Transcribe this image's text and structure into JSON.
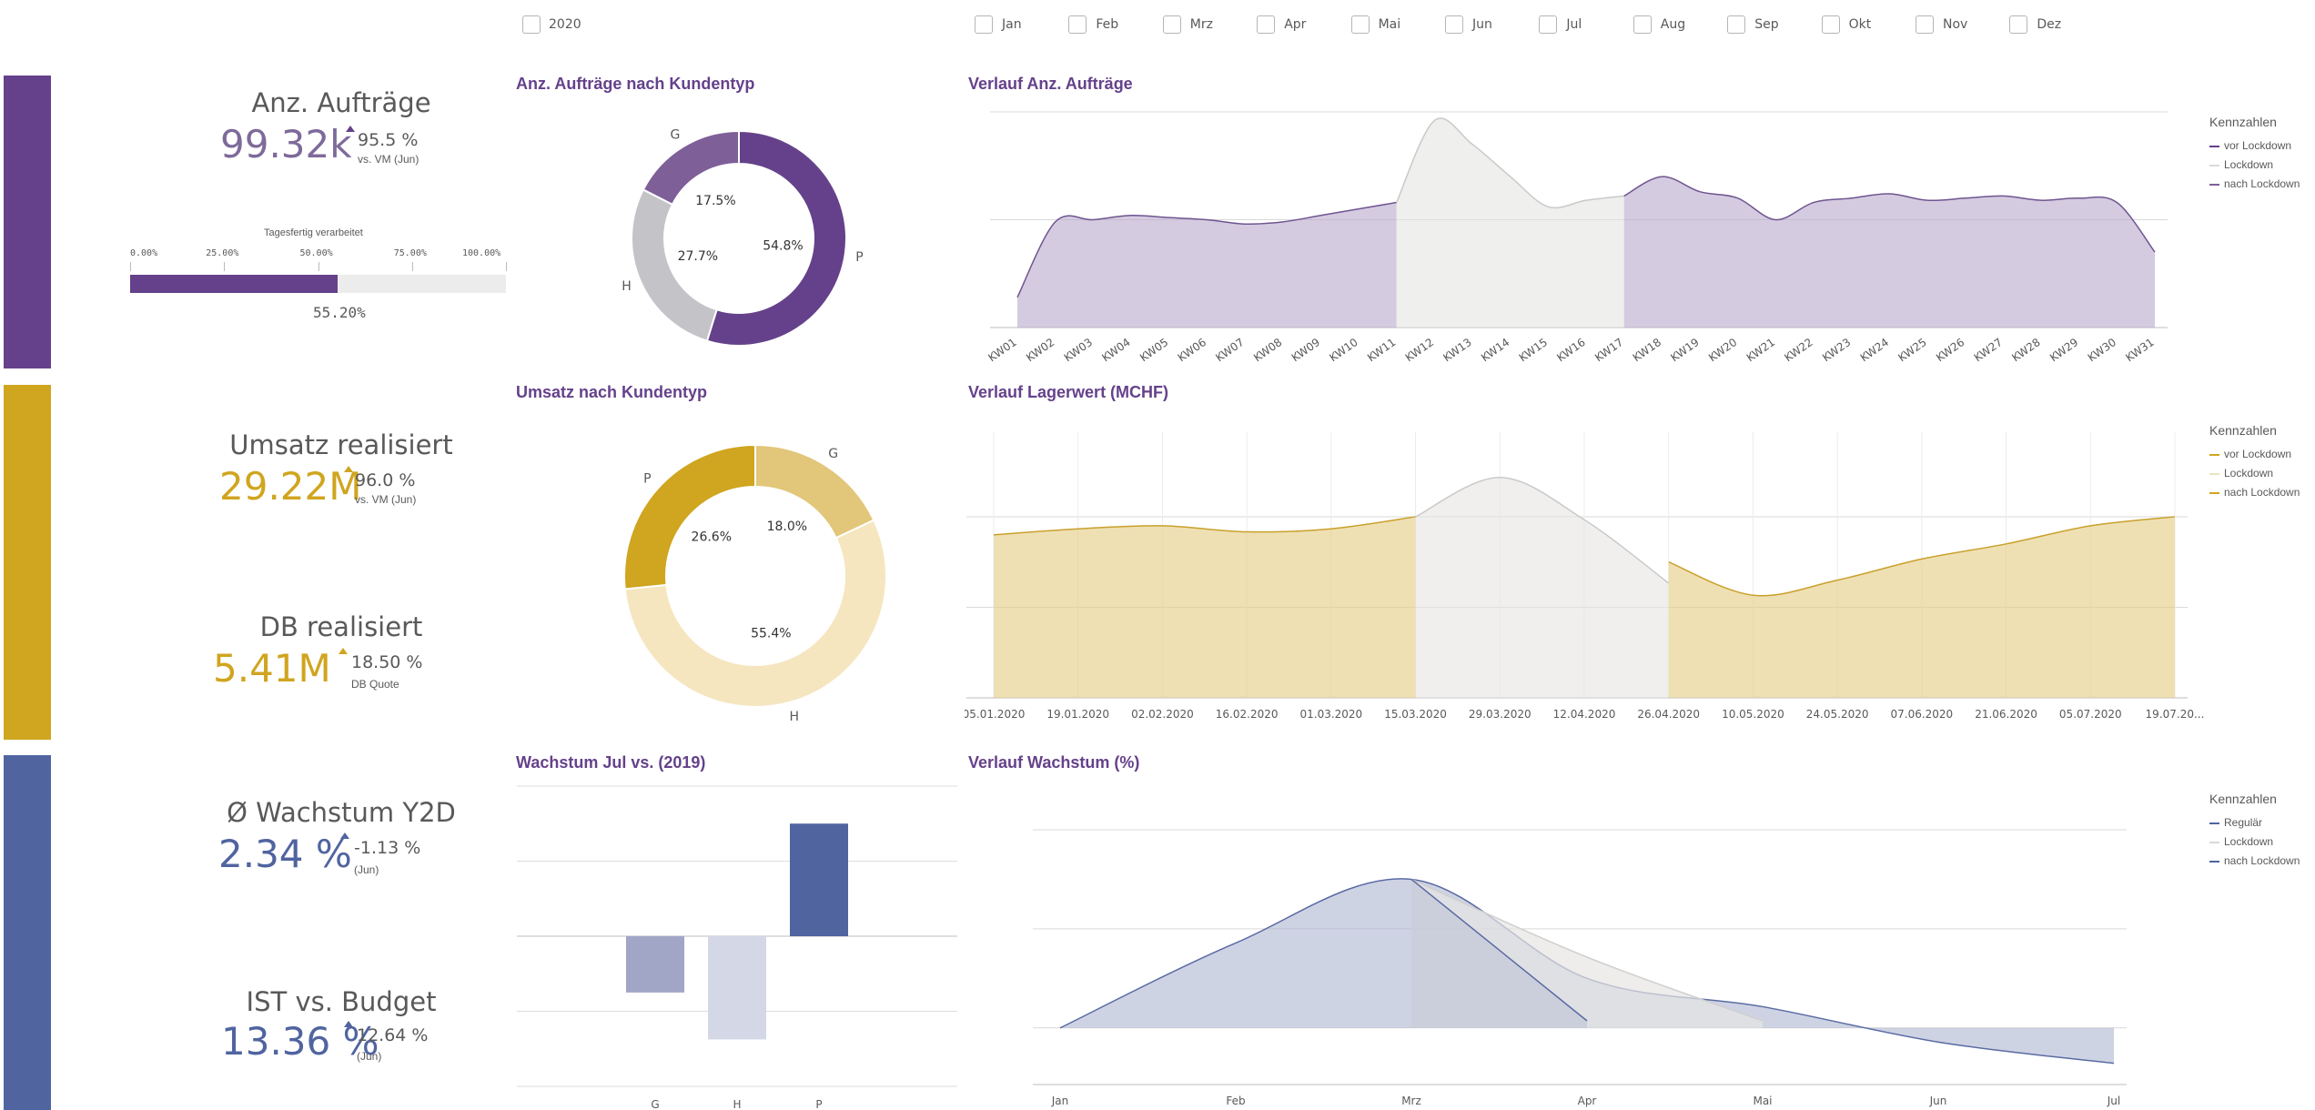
{
  "filters": {
    "year": "2020",
    "months": [
      "Jan",
      "Feb",
      "Mrz",
      "Apr",
      "Mai",
      "Jun",
      "Jul",
      "Aug",
      "Sep",
      "Okt",
      "Nov",
      "Dez"
    ]
  },
  "colors": {
    "purple": "#65418b",
    "gold": "#d0a51f",
    "blue": "#5064a0",
    "grey": "#c9c9cb"
  },
  "kpis": {
    "auftraege": {
      "title": "Anz. Aufträge",
      "value": "99.32k",
      "pct": "95.5 %",
      "sub": "vs. VM (Jun)"
    },
    "gauge": {
      "title": "Tagesfertig verarbeitet",
      "ticks": [
        "0.00%",
        "25.00%",
        "50.00%",
        "75.00%",
        "100.00%"
      ],
      "value_label": "55.20%",
      "value": 0.552
    },
    "umsatz": {
      "title": "Umsatz realisiert",
      "value": "29.22M",
      "pct": "96.0 %",
      "sub": "vs. VM (Jun)"
    },
    "db": {
      "title": "DB realisiert",
      "value": "5.41M",
      "pct": "18.50 %",
      "sub": "DB Quote"
    },
    "wachstum": {
      "title": "Ø Wachstum Y2D",
      "value": "2.34 %",
      "pct": "-1.13 %",
      "sub": "(Jun)"
    },
    "budget": {
      "title": "IST vs. Budget",
      "value": "13.36 %",
      "pct": "12.64 %",
      "sub": "(Jun)"
    }
  },
  "panels": {
    "donut1_title": "Anz. Aufträge nach Kundentyp",
    "line1_title": "Verlauf Anz. Aufträge",
    "donut2_title": "Umsatz nach Kundentyp",
    "line2_title": "Verlauf Lagerwert (MCHF)",
    "bar_title": "Wachstum Jul vs. (2019)",
    "line3_title": "Verlauf Wachstum (%)"
  },
  "legends": {
    "l1": {
      "title": "Kennzahlen",
      "items": [
        "vor Lockdown",
        "Lockdown",
        "nach Lockdown"
      ]
    },
    "l2": {
      "title": "Kennzahlen",
      "items": [
        "vor Lockdown",
        "Lockdown",
        "nach Lockdown"
      ]
    },
    "l3": {
      "title": "Kennzahlen",
      "items": [
        "Regulär",
        "Lockdown",
        "nach Lockdown"
      ]
    }
  },
  "chart_data": [
    {
      "type": "pie",
      "title": "Anz. Aufträge nach Kundentyp",
      "categories": [
        "P",
        "H",
        "G"
      ],
      "values": [
        54.8,
        27.7,
        17.5
      ],
      "labels": [
        "54.8%",
        "27.7%",
        "17.5%"
      ],
      "colors": [
        "#65418b",
        "#c4c4c8",
        "#7e5f97"
      ]
    },
    {
      "type": "pie",
      "title": "Umsatz nach Kundentyp",
      "categories": [
        "G",
        "H",
        "P"
      ],
      "values": [
        18.0,
        55.4,
        26.6
      ],
      "labels": [
        "18.0%",
        "55.4%",
        "26.6%"
      ],
      "colors": [
        "#e2c679",
        "#f5e6c0",
        "#d0a51f"
      ]
    },
    {
      "type": "area",
      "title": "Verlauf Anz. Aufträge",
      "x": [
        "KW01",
        "KW02",
        "KW03",
        "KW04",
        "KW05",
        "KW06",
        "KW07",
        "KW08",
        "KW09",
        "KW10",
        "KW11",
        "KW12",
        "KW13",
        "KW14",
        "KW15",
        "KW16",
        "KW17",
        "KW18",
        "KW19",
        "KW20",
        "KW21",
        "KW22",
        "KW23",
        "KW24",
        "KW25",
        "KW26",
        "KW27",
        "KW28",
        "KW29",
        "KW30",
        "KW31"
      ],
      "series": [
        {
          "name": "vor Lockdown",
          "values": [
            14,
            49,
            50,
            52,
            51,
            50,
            48,
            49,
            52,
            55,
            58,
            null,
            null,
            null,
            null,
            null,
            null,
            null,
            null,
            null,
            null,
            null,
            null,
            null,
            null,
            null,
            null,
            null,
            null,
            null,
            null
          ]
        },
        {
          "name": "Lockdown",
          "values": [
            null,
            null,
            null,
            null,
            null,
            null,
            null,
            null,
            null,
            null,
            58,
            96,
            85,
            70,
            56,
            59,
            61,
            null,
            null,
            null,
            null,
            null,
            null,
            null,
            null,
            null,
            null,
            null,
            null,
            null,
            null
          ]
        },
        {
          "name": "nach Lockdown",
          "values": [
            null,
            null,
            null,
            null,
            null,
            null,
            null,
            null,
            null,
            null,
            null,
            null,
            null,
            null,
            null,
            null,
            61,
            70,
            63,
            60,
            50,
            58,
            60,
            62,
            59,
            60,
            61,
            59,
            60,
            58,
            35
          ]
        }
      ],
      "ylim": [
        0,
        100
      ]
    },
    {
      "type": "area",
      "title": "Verlauf Lagerwert (MCHF)",
      "x": [
        "05.01.2020",
        "19.01.2020",
        "02.02.2020",
        "16.02.2020",
        "01.03.2020",
        "15.03.2020",
        "29.03.2020",
        "12.04.2020",
        "26.04.2020",
        "10.05.2020",
        "24.05.2020",
        "07.06.2020",
        "21.06.2020",
        "05.07.2020",
        "19.07.20..."
      ],
      "series": [
        {
          "name": "vor Lockdown",
          "values": [
            54,
            56,
            57,
            55,
            56,
            60,
            null,
            null,
            null,
            null,
            null,
            null,
            null,
            null,
            null
          ]
        },
        {
          "name": "Lockdown",
          "values": [
            null,
            null,
            null,
            null,
            null,
            60,
            73,
            59,
            38,
            null,
            null,
            null,
            null,
            null,
            null
          ]
        },
        {
          "name": "nach Lockdown",
          "values": [
            null,
            null,
            null,
            null,
            null,
            null,
            null,
            null,
            45,
            34,
            39,
            46,
            51,
            57,
            60
          ]
        }
      ],
      "ylim": [
        0,
        85
      ]
    },
    {
      "type": "bar",
      "title": "Wachstum Jul vs. (2019)",
      "categories": [
        "G",
        "H",
        "P"
      ],
      "values": [
        -3.0,
        -5.5,
        6.0
      ],
      "colors": [
        "#a1a6c7",
        "#d3d7e6",
        "#5064a0"
      ],
      "ylim": [
        -8,
        8
      ]
    },
    {
      "type": "area",
      "title": "Verlauf Wachstum (%)",
      "x": [
        "Jan",
        "Feb",
        "Mrz",
        "Apr",
        "Mai",
        "Jun",
        "Jul"
      ],
      "series": [
        {
          "name": "Regulär",
          "values": [
            0,
            6,
            10.5,
            3.5,
            1.5,
            -1,
            -2.5
          ]
        },
        {
          "name": "Lockdown",
          "values": [
            null,
            null,
            10.5,
            5,
            0.5,
            null,
            null
          ]
        },
        {
          "name": "nach Lockdown",
          "values": [
            null,
            null,
            10.5,
            0.5,
            null,
            null,
            null
          ]
        }
      ],
      "ylim": [
        -4,
        14
      ]
    }
  ]
}
